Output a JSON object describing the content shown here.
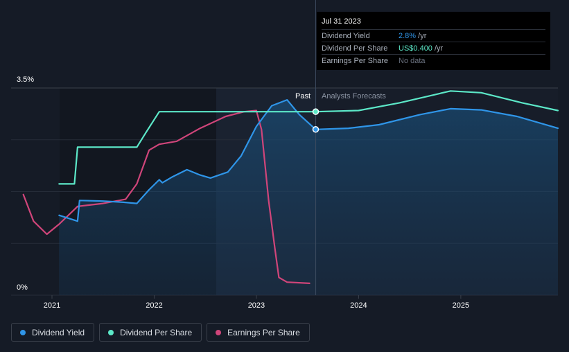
{
  "chart_data": {
    "type": "line",
    "title": "",
    "xlabel": "",
    "ylabel": "",
    "x_ticks": [
      "2021",
      "2022",
      "2023",
      "2024",
      "2025"
    ],
    "xlim": [
      2020.6,
      2025.95
    ],
    "ylim": [
      0,
      3.5
    ],
    "y_tick_labels": [
      "3.5%",
      "0%"
    ],
    "regions": {
      "past_label": "Past",
      "forecast_label": "Analysts Forecasts",
      "divider_x": 2023.58
    },
    "series": [
      {
        "name": "Dividend Yield",
        "color": "#2f95e8",
        "points": [
          [
            2021.07,
            1.35
          ],
          [
            2021.25,
            1.25
          ],
          [
            2021.27,
            1.6
          ],
          [
            2021.5,
            1.59
          ],
          [
            2021.7,
            1.57
          ],
          [
            2021.83,
            1.55
          ],
          [
            2021.95,
            1.78
          ],
          [
            2022.05,
            1.95
          ],
          [
            2022.08,
            1.9
          ],
          [
            2022.18,
            2.0
          ],
          [
            2022.32,
            2.12
          ],
          [
            2022.45,
            2.03
          ],
          [
            2022.55,
            1.98
          ],
          [
            2022.72,
            2.08
          ],
          [
            2022.85,
            2.35
          ],
          [
            2023.0,
            2.85
          ],
          [
            2023.15,
            3.2
          ],
          [
            2023.3,
            3.3
          ],
          [
            2023.42,
            3.05
          ],
          [
            2023.58,
            2.8
          ],
          [
            2023.9,
            2.82
          ],
          [
            2024.2,
            2.88
          ],
          [
            2024.6,
            3.05
          ],
          [
            2024.9,
            3.15
          ],
          [
            2025.2,
            3.13
          ],
          [
            2025.55,
            3.02
          ],
          [
            2025.95,
            2.82
          ]
        ]
      },
      {
        "name": "Dividend Per Share",
        "color": "#5ce8c8",
        "points": [
          [
            2021.07,
            1.88
          ],
          [
            2021.22,
            1.88
          ],
          [
            2021.25,
            2.5
          ],
          [
            2021.83,
            2.5
          ],
          [
            2021.92,
            2.75
          ],
          [
            2022.05,
            3.1
          ],
          [
            2022.6,
            3.1
          ],
          [
            2023.58,
            3.1
          ],
          [
            2024.0,
            3.12
          ],
          [
            2024.4,
            3.25
          ],
          [
            2024.9,
            3.45
          ],
          [
            2025.2,
            3.42
          ],
          [
            2025.6,
            3.25
          ],
          [
            2025.95,
            3.12
          ]
        ]
      },
      {
        "name": "Earnings Per Share",
        "color": "#d0457a",
        "points": [
          [
            2020.72,
            1.7
          ],
          [
            2020.82,
            1.25
          ],
          [
            2020.95,
            1.03
          ],
          [
            2021.07,
            1.2
          ],
          [
            2021.25,
            1.5
          ],
          [
            2021.5,
            1.55
          ],
          [
            2021.72,
            1.62
          ],
          [
            2021.83,
            1.88
          ],
          [
            2021.95,
            2.45
          ],
          [
            2022.05,
            2.55
          ],
          [
            2022.22,
            2.6
          ],
          [
            2022.45,
            2.82
          ],
          [
            2022.7,
            3.02
          ],
          [
            2022.88,
            3.1
          ],
          [
            2023.0,
            3.12
          ],
          [
            2023.05,
            2.8
          ],
          [
            2023.12,
            1.6
          ],
          [
            2023.18,
            0.8
          ],
          [
            2023.22,
            0.3
          ],
          [
            2023.3,
            0.22
          ],
          [
            2023.52,
            0.2
          ]
        ]
      }
    ],
    "highlight_points": [
      {
        "series": "Dividend Per Share",
        "x": 2023.58,
        "y": 3.1
      },
      {
        "series": "Dividend Yield",
        "x": 2023.58,
        "y": 2.8
      }
    ]
  },
  "tooltip": {
    "date": "Jul 31 2023",
    "rows": [
      {
        "label": "Dividend Yield",
        "value": "2.8%",
        "unit": " /yr"
      },
      {
        "label": "Dividend Per Share",
        "value": "US$0.400",
        "unit": " /yr"
      },
      {
        "label": "Earnings Per Share",
        "value": "No data",
        "unit": ""
      }
    ]
  },
  "legend": [
    {
      "label": "Dividend Yield",
      "color": "#2f95e8"
    },
    {
      "label": "Dividend Per Share",
      "color": "#5ce8c8"
    },
    {
      "label": "Earnings Per Share",
      "color": "#d0457a"
    }
  ]
}
